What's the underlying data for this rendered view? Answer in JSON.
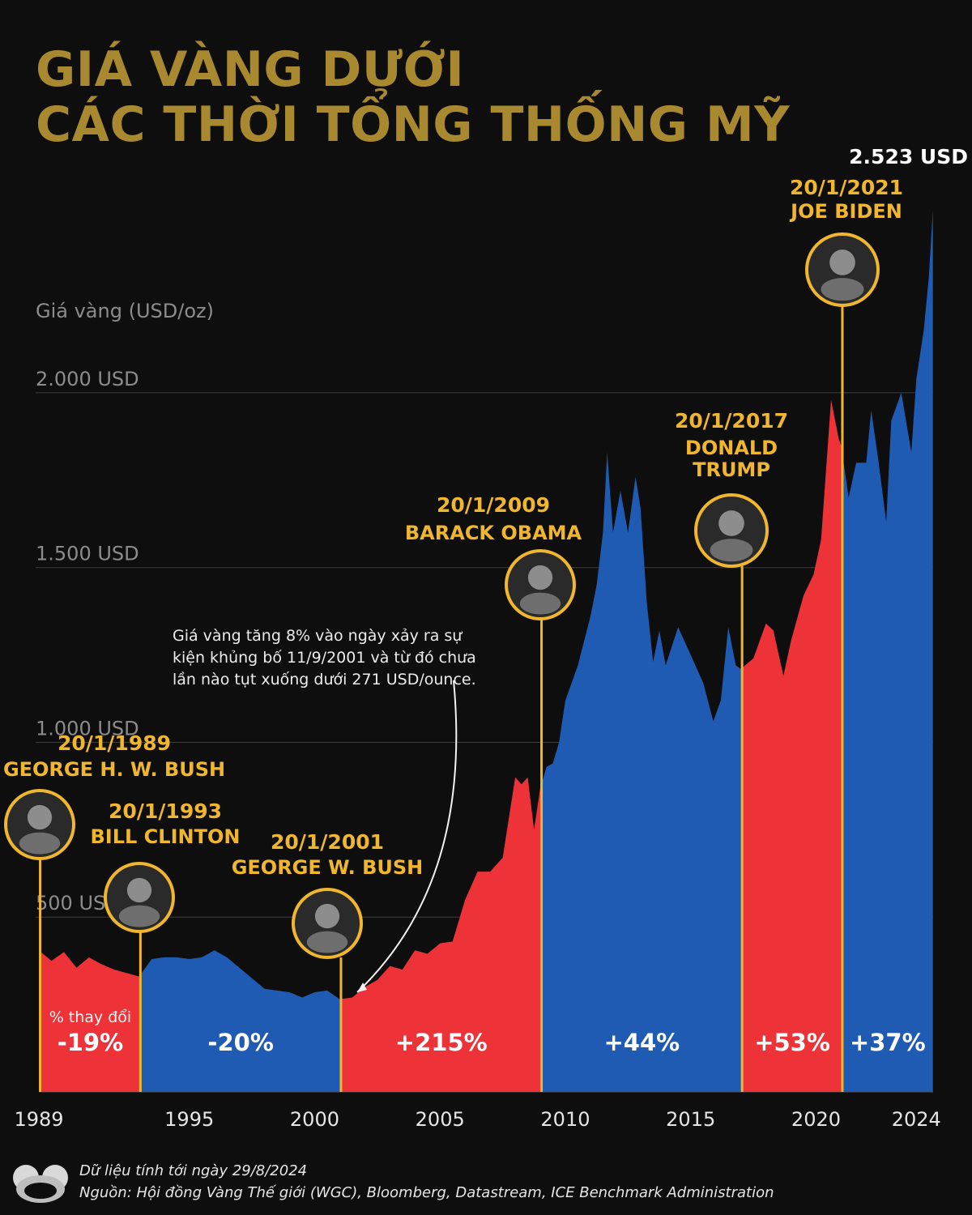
{
  "title": {
    "line1": "GIÁ VÀNG DƯỚI",
    "line2": "CÁC THỜI TỔNG THỐNG MỸ"
  },
  "colors": {
    "gold": "#f0b72e",
    "title": "#a8892f",
    "red": "#ee3338",
    "blue": "#1f5bb3",
    "background": "#0f0e0e"
  },
  "chart_data": {
    "type": "area",
    "ylabel": "Giá vàng (USD/oz)",
    "ylim": [
      0,
      2600
    ],
    "xlim": [
      1989,
      2024.67
    ],
    "y_ticks": [
      {
        "value": 500,
        "label": "500 USD"
      },
      {
        "value": 1000,
        "label": "1.000 USD"
      },
      {
        "value": 1500,
        "label": "1.500 USD"
      },
      {
        "value": 2000,
        "label": "2.000 USD"
      }
    ],
    "x_ticks": [
      {
        "value": 1989,
        "label": "1989"
      },
      {
        "value": 1995,
        "label": "1995"
      },
      {
        "value": 2000,
        "label": "2000"
      },
      {
        "value": 2005,
        "label": "2005"
      },
      {
        "value": 2010,
        "label": "2010"
      },
      {
        "value": 2015,
        "label": "2015"
      },
      {
        "value": 2020,
        "label": "2020"
      },
      {
        "value": 2024,
        "label": "2024"
      }
    ],
    "x": [
      1989.0,
      1989.5,
      1990.0,
      1990.5,
      1991.0,
      1991.5,
      1992.0,
      1992.5,
      1993.0,
      1993.5,
      1994.0,
      1994.5,
      1995.0,
      1995.5,
      1996.0,
      1996.5,
      1997.0,
      1997.5,
      1998.0,
      1998.5,
      1999.0,
      1999.5,
      2000.0,
      2000.5,
      2001.0,
      2001.5,
      2002.0,
      2002.5,
      2003.0,
      2003.5,
      2004.0,
      2004.5,
      2005.0,
      2005.5,
      2006.0,
      2006.5,
      2007.0,
      2007.5,
      2008.0,
      2008.25,
      2008.5,
      2008.75,
      2009.0,
      2009.25,
      2009.5,
      2009.75,
      2010.0,
      2010.5,
      2011.0,
      2011.25,
      2011.5,
      2011.67,
      2011.9,
      2012.2,
      2012.5,
      2012.8,
      2013.0,
      2013.25,
      2013.5,
      2013.75,
      2014.0,
      2014.5,
      2015.0,
      2015.5,
      2015.9,
      2016.2,
      2016.5,
      2016.8,
      2017.0,
      2017.5,
      2018.0,
      2018.3,
      2018.7,
      2019.0,
      2019.5,
      2019.9,
      2020.2,
      2020.6,
      2020.9,
      2021.0,
      2021.3,
      2021.6,
      2022.0,
      2022.2,
      2022.5,
      2022.8,
      2023.0,
      2023.4,
      2023.8,
      2024.0,
      2024.3,
      2024.5,
      2024.66
    ],
    "y": [
      405,
      375,
      400,
      355,
      385,
      365,
      350,
      340,
      330,
      380,
      385,
      385,
      380,
      385,
      405,
      385,
      355,
      325,
      295,
      290,
      285,
      270,
      285,
      290,
      265,
      270,
      300,
      320,
      360,
      350,
      405,
      395,
      425,
      430,
      550,
      630,
      630,
      670,
      900,
      880,
      900,
      750,
      870,
      930,
      940,
      1000,
      1120,
      1220,
      1360,
      1450,
      1600,
      1830,
      1600,
      1720,
      1600,
      1760,
      1670,
      1400,
      1230,
      1320,
      1220,
      1330,
      1250,
      1170,
      1060,
      1120,
      1330,
      1220,
      1210,
      1240,
      1340,
      1320,
      1190,
      1290,
      1420,
      1480,
      1580,
      1980,
      1870,
      1850,
      1700,
      1800,
      1800,
      1950,
      1800,
      1630,
      1920,
      2000,
      1830,
      2040,
      2180,
      2330,
      2523
    ],
    "terms": [
      {
        "start": 1989.05,
        "end": 1993.05,
        "color": "red",
        "change": "-19%",
        "date": "20/1/1989",
        "name": "GEORGE H. W. BUSH"
      },
      {
        "start": 1993.05,
        "end": 2001.05,
        "color": "blue",
        "change": "-20%",
        "date": "20/1/1993",
        "name": "BILL CLINTON"
      },
      {
        "start": 2001.05,
        "end": 2009.05,
        "color": "red",
        "change": "+215%",
        "date": "20/1/2001",
        "name": "GEORGE W. BUSH"
      },
      {
        "start": 2009.05,
        "end": 2017.05,
        "color": "blue",
        "change": "+44%",
        "date": "20/1/2009",
        "name": "BARACK OBAMA"
      },
      {
        "start": 2017.05,
        "end": 2021.05,
        "color": "red",
        "change": "+53%",
        "date": "20/1/2017",
        "name": "DONALD TRUMP"
      },
      {
        "start": 2021.05,
        "end": 2024.66,
        "color": "blue",
        "change": "+37%",
        "date": "20/1/2021",
        "name": "JOE BIDEN"
      }
    ],
    "change_caption": "% thay đổi",
    "last_value_label": "2.523 USD",
    "annotation": {
      "text": "Giá vàng tăng 8% vào ngày xảy ra sự kiện khủng bố 11/9/2001 và từ đó chưa lần nào tụt xuống dưới 271 USD/ounce.",
      "x": 2001.7,
      "y": 271
    }
  },
  "footer": {
    "date_note": "Dữ liệu tính tới ngày 29/8/2024",
    "source": "Nguồn: Hội đồng Vàng Thế giới (WGC), Bloomberg, Datastream, ICE Benchmark Administration"
  }
}
